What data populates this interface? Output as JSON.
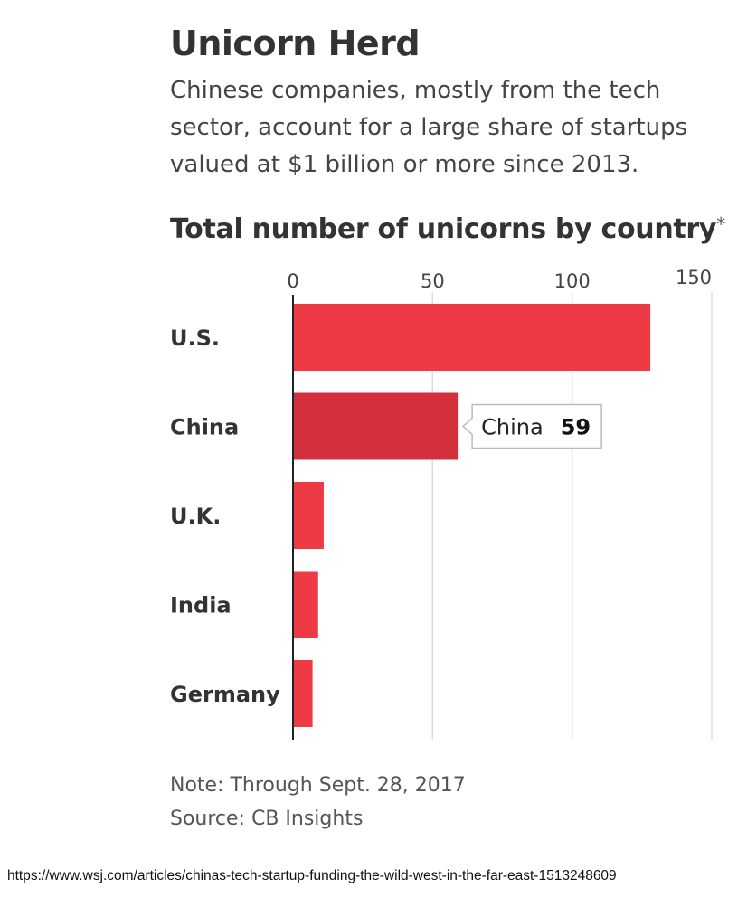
{
  "header": {
    "title": "Unicorn Herd",
    "subtitle": "Chinese companies, mostly from the tech sector, account for a large share of startups valued at $1 billion or more since 2013."
  },
  "chart_data": {
    "type": "bar",
    "orientation": "horizontal",
    "title": "Total number of unicorns by country",
    "title_mark": "*",
    "categories": [
      "U.S.",
      "China",
      "U.K.",
      "India",
      "Germany"
    ],
    "values": [
      128,
      59,
      11,
      9,
      7
    ],
    "xlim": [
      0,
      150
    ],
    "ticks": [
      0,
      50,
      100,
      150
    ],
    "grid": true,
    "colors": {
      "bar": "#EE3A45",
      "highlight": "#D1303C",
      "grid": "#DDDDDD",
      "axis": "#222222"
    },
    "highlight": {
      "category": "China",
      "label": "China",
      "value": "59"
    }
  },
  "footer": {
    "note": "Note: Through Sept. 28, 2017",
    "source": "Source: CB Insights",
    "url": "https://www.wsj.com/articles/chinas-tech-startup-funding-the-wild-west-in-the-far-east-1513248609"
  }
}
